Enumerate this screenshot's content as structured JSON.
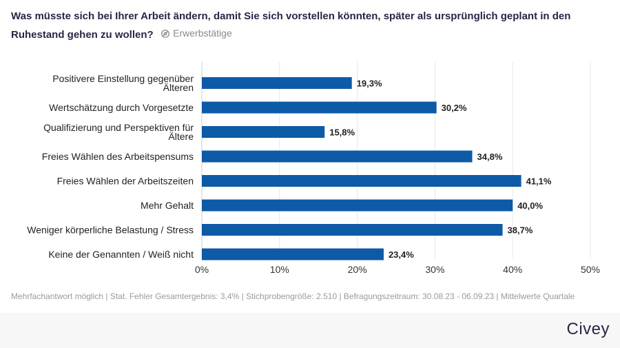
{
  "header": {
    "title": "Was müsste sich bei Ihrer Arbeit ändern, damit Sie sich vorstellen könnten, später als ursprünglich geplant in den Ruhestand gehen zu wollen?",
    "subtitle": "Erwerbstätige",
    "subtitle_icon": "filter-icon"
  },
  "chart_data": {
    "type": "bar",
    "orientation": "horizontal",
    "categories": [
      "Positivere Einstellung gegenüber Älteren",
      "Wertschätzung durch Vorgesetzte",
      "Qualifizierung und Perspektiven für Ältere",
      "Freies Wählen des Arbeitspensums",
      "Freies Wählen der Arbeitszeiten",
      "Mehr Gehalt",
      "Weniger körperliche Belastung / Stress",
      "Keine der Genannten / Weiß nicht"
    ],
    "values": [
      19.3,
      30.2,
      15.8,
      34.8,
      41.1,
      40.0,
      38.7,
      23.4
    ],
    "value_labels": [
      "19,3%",
      "30,2%",
      "15,8%",
      "34,8%",
      "41,1%",
      "40,0%",
      "38,7%",
      "23,4%"
    ],
    "xlim": [
      0,
      50
    ],
    "xticks": [
      0,
      10,
      20,
      30,
      40,
      50
    ],
    "xtick_labels": [
      "0%",
      "10%",
      "20%",
      "30%",
      "40%",
      "50%"
    ],
    "bar_color": "#0d5aa7",
    "grid": true
  },
  "footnote": "Mehrfachantwort möglich | Stat. Fehler Gesamtergebnis: 3,4% | Stichprobengröße: 2.510 | Befragungszeitraum: 30.08.23 - 06.09.23 | Mittelwerte Quartale",
  "brand": {
    "logo": "Civey",
    "color": "#2b2547"
  }
}
